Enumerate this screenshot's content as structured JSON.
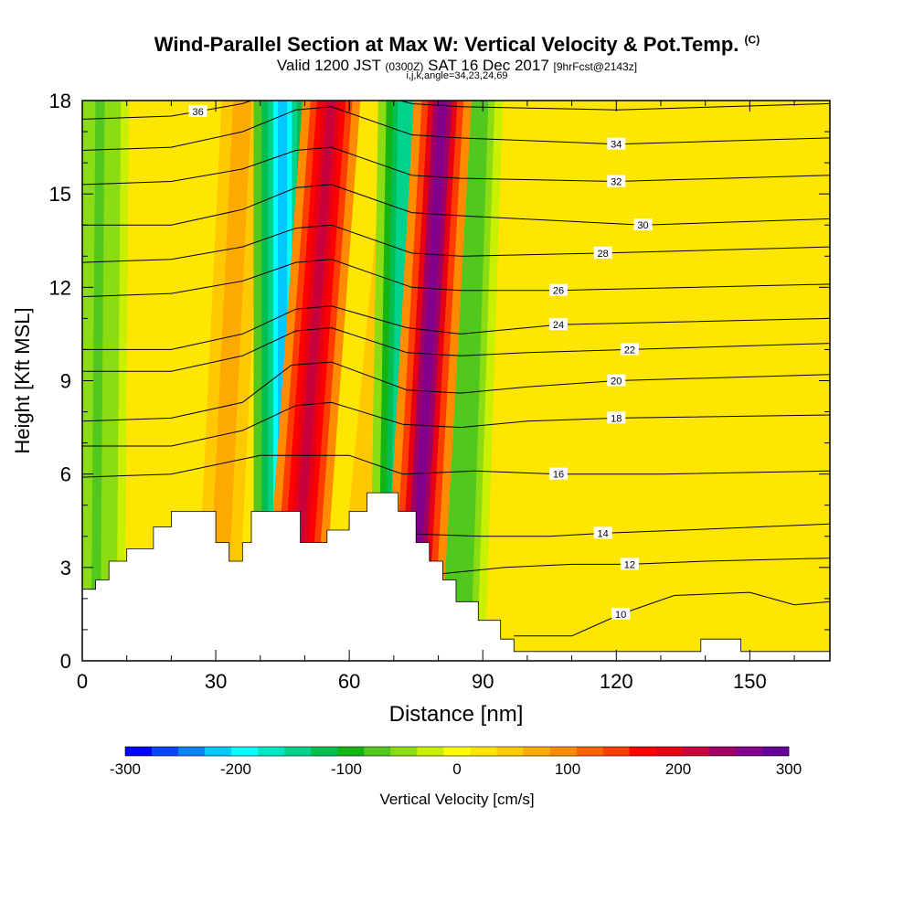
{
  "title": {
    "main": "Wind-Parallel Section at Max W: Vertical Velocity & Pot.Temp.",
    "copyright": "(C)",
    "valid_prefix": "Valid 1200 JST",
    "valid_utc": "(0300Z)",
    "valid_date": "SAT 16 Dec 2017",
    "forecast": "[9hrFcst@2143z]",
    "indices": "i,j,k,angle=34,23,24,69"
  },
  "chart_data": {
    "type": "heatmap",
    "subtype": "cross-section with contour overlay",
    "xlabel": "Distance [nm]",
    "ylabel": "Height [Kft MSL]",
    "xlim": [
      0,
      168
    ],
    "ylim": [
      0,
      18
    ],
    "xticks": [
      "0",
      "30",
      "60",
      "90",
      "120",
      "150"
    ],
    "yticks": [
      "0",
      "3",
      "6",
      "9",
      "12",
      "15",
      "18"
    ],
    "grid": false,
    "colorbar": {
      "label": "Vertical Velocity [cm/s]",
      "placement": "bottom",
      "range": [
        -300,
        300
      ],
      "tick_labels": [
        "-300",
        "-200",
        "-100",
        "0",
        "100",
        "200",
        "300"
      ],
      "colors": [
        "#0000ff",
        "#0a46ff",
        "#0a82ff",
        "#00c8ff",
        "#00ffff",
        "#00e6c0",
        "#00d28c",
        "#00be50",
        "#14b414",
        "#50c81e",
        "#8cdc14",
        "#c8f000",
        "#ffff00",
        "#ffe600",
        "#ffc800",
        "#ffaa00",
        "#ff8c00",
        "#ff6400",
        "#ff3c00",
        "#ff0000",
        "#e60014",
        "#c8003c",
        "#a00064",
        "#82008c",
        "#640096"
      ]
    },
    "updrafts": [
      {
        "x_top": 56,
        "x_bottom": 47,
        "w": 250
      },
      {
        "x_top": 81,
        "x_bottom": 74,
        "w": 290
      },
      {
        "x_top": 36,
        "x_bottom": 30,
        "w": 80
      },
      {
        "x_top": 72,
        "x_bottom": 60,
        "w": 60
      }
    ],
    "downdrafts": [
      {
        "x_top": 45,
        "x_bottom": 45,
        "w": -230
      },
      {
        "x_top": 73,
        "x_bottom": 71,
        "w": -170
      },
      {
        "x_top": 88,
        "x_bottom": 84,
        "w": -90
      },
      {
        "x_top": 4,
        "x_bottom": 3,
        "w": -70
      }
    ],
    "terrain": [
      [
        0,
        2.3
      ],
      [
        3,
        2.3
      ],
      [
        3,
        2.6
      ],
      [
        6,
        2.6
      ],
      [
        6,
        3.2
      ],
      [
        10,
        3.2
      ],
      [
        10,
        3.6
      ],
      [
        16,
        3.6
      ],
      [
        16,
        4.3
      ],
      [
        20,
        4.3
      ],
      [
        20,
        4.8
      ],
      [
        30,
        4.8
      ],
      [
        30,
        3.8
      ],
      [
        33,
        3.8
      ],
      [
        33,
        3.2
      ],
      [
        36,
        3.2
      ],
      [
        36,
        3.8
      ],
      [
        38,
        3.8
      ],
      [
        38,
        4.8
      ],
      [
        49,
        4.8
      ],
      [
        49,
        3.8
      ],
      [
        55,
        3.8
      ],
      [
        55,
        4.2
      ],
      [
        60,
        4.2
      ],
      [
        60,
        4.8
      ],
      [
        64,
        4.8
      ],
      [
        64,
        5.4
      ],
      [
        71,
        5.4
      ],
      [
        71,
        4.8
      ],
      [
        75,
        4.8
      ],
      [
        75,
        3.8
      ],
      [
        78,
        3.8
      ],
      [
        78,
        3.2
      ],
      [
        81,
        3.2
      ],
      [
        81,
        2.6
      ],
      [
        84,
        2.6
      ],
      [
        84,
        1.9
      ],
      [
        89,
        1.9
      ],
      [
        89,
        1.3
      ],
      [
        94,
        1.3
      ],
      [
        94,
        0.7
      ],
      [
        97,
        0.7
      ],
      [
        97,
        0.3
      ],
      [
        139,
        0.3
      ],
      [
        139,
        0.7
      ],
      [
        148,
        0.7
      ],
      [
        148,
        0.3
      ],
      [
        168,
        0.3
      ],
      [
        168,
        0
      ]
    ],
    "theta_series": [
      {
        "name": "10",
        "label_x": 121,
        "values": [
          [
            97,
            0.8
          ],
          [
            110,
            0.8
          ],
          [
            121,
            1.5
          ],
          [
            133,
            2.1
          ],
          [
            150,
            2.2
          ],
          [
            160,
            1.8
          ],
          [
            168,
            1.9
          ]
        ]
      },
      {
        "name": "12",
        "label_x": 123,
        "values": [
          [
            81,
            2.8
          ],
          [
            95,
            3.0
          ],
          [
            110,
            3.1
          ],
          [
            123,
            3.1
          ],
          [
            140,
            3.2
          ],
          [
            168,
            3.3
          ]
        ]
      },
      {
        "name": "14",
        "label_x": 117,
        "values": [
          [
            70,
            4.1
          ],
          [
            90,
            4.0
          ],
          [
            105,
            4.0
          ],
          [
            117,
            4.1
          ],
          [
            135,
            4.2
          ],
          [
            168,
            4.4
          ]
        ]
      },
      {
        "name": "16",
        "label_x": 107,
        "values": [
          [
            0,
            5.9
          ],
          [
            20,
            6.0
          ],
          [
            40,
            6.6
          ],
          [
            60,
            6.6
          ],
          [
            72,
            6.0
          ],
          [
            88,
            6.1
          ],
          [
            107,
            6.0
          ],
          [
            130,
            6.0
          ],
          [
            168,
            6.1
          ]
        ]
      },
      {
        "name": "18",
        "label_x": 120,
        "values": [
          [
            0,
            6.9
          ],
          [
            20,
            6.9
          ],
          [
            36,
            7.4
          ],
          [
            48,
            8.2
          ],
          [
            56,
            8.3
          ],
          [
            72,
            7.6
          ],
          [
            85,
            7.5
          ],
          [
            100,
            7.7
          ],
          [
            120,
            7.8
          ],
          [
            168,
            7.9
          ]
        ]
      },
      {
        "name": "20",
        "label_x": 120,
        "values": [
          [
            0,
            7.7
          ],
          [
            20,
            7.8
          ],
          [
            36,
            8.3
          ],
          [
            47,
            9.5
          ],
          [
            56,
            9.6
          ],
          [
            73,
            8.7
          ],
          [
            85,
            8.6
          ],
          [
            100,
            8.8
          ],
          [
            120,
            9.0
          ],
          [
            168,
            9.2
          ]
        ]
      },
      {
        "name": "22",
        "label_x": 123,
        "values": [
          [
            0,
            9.3
          ],
          [
            20,
            9.3
          ],
          [
            36,
            9.8
          ],
          [
            48,
            10.6
          ],
          [
            56,
            10.7
          ],
          [
            73,
            9.9
          ],
          [
            85,
            9.8
          ],
          [
            100,
            9.9
          ],
          [
            123,
            10.0
          ],
          [
            168,
            10.2
          ]
        ]
      },
      {
        "name": "24",
        "label_x": 107,
        "values": [
          [
            0,
            10.0
          ],
          [
            20,
            10.0
          ],
          [
            36,
            10.5
          ],
          [
            48,
            11.3
          ],
          [
            56,
            11.4
          ],
          [
            73,
            10.7
          ],
          [
            85,
            10.5
          ],
          [
            107,
            10.8
          ],
          [
            168,
            11.0
          ]
        ]
      },
      {
        "name": "26",
        "label_x": 107,
        "values": [
          [
            0,
            11.7
          ],
          [
            20,
            11.8
          ],
          [
            36,
            12.2
          ],
          [
            48,
            12.8
          ],
          [
            56,
            12.9
          ],
          [
            74,
            12.0
          ],
          [
            85,
            11.9
          ],
          [
            107,
            11.9
          ],
          [
            168,
            12.1
          ]
        ]
      },
      {
        "name": "28",
        "label_x": 117,
        "values": [
          [
            0,
            12.8
          ],
          [
            20,
            12.9
          ],
          [
            36,
            13.3
          ],
          [
            48,
            13.9
          ],
          [
            56,
            14.0
          ],
          [
            74,
            13.1
          ],
          [
            85,
            13.0
          ],
          [
            117,
            13.1
          ],
          [
            168,
            13.3
          ]
        ]
      },
      {
        "name": "30",
        "label_x": 126,
        "values": [
          [
            0,
            14.0
          ],
          [
            20,
            14.0
          ],
          [
            36,
            14.5
          ],
          [
            48,
            15.2
          ],
          [
            56,
            15.3
          ],
          [
            74,
            14.4
          ],
          [
            85,
            14.3
          ],
          [
            126,
            14.0
          ],
          [
            168,
            14.2
          ]
        ]
      },
      {
        "name": "32",
        "label_x": 120,
        "values": [
          [
            0,
            15.3
          ],
          [
            20,
            15.4
          ],
          [
            36,
            15.8
          ],
          [
            48,
            16.4
          ],
          [
            56,
            16.5
          ],
          [
            74,
            15.6
          ],
          [
            85,
            15.5
          ],
          [
            120,
            15.4
          ],
          [
            168,
            15.6
          ]
        ]
      },
      {
        "name": "34",
        "label_x": 120,
        "values": [
          [
            0,
            16.4
          ],
          [
            20,
            16.5
          ],
          [
            36,
            17.0
          ],
          [
            48,
            17.7
          ],
          [
            56,
            17.8
          ],
          [
            74,
            16.9
          ],
          [
            85,
            16.8
          ],
          [
            120,
            16.6
          ],
          [
            168,
            16.8
          ]
        ]
      },
      {
        "name": "36",
        "label_x": 26,
        "values": [
          [
            0,
            17.4
          ],
          [
            20,
            17.5
          ],
          [
            36,
            17.9
          ],
          [
            48,
            18.5
          ],
          [
            56,
            18.6
          ],
          [
            74,
            17.9
          ],
          [
            85,
            17.8
          ],
          [
            120,
            17.7
          ],
          [
            168,
            17.9
          ]
        ]
      }
    ]
  }
}
